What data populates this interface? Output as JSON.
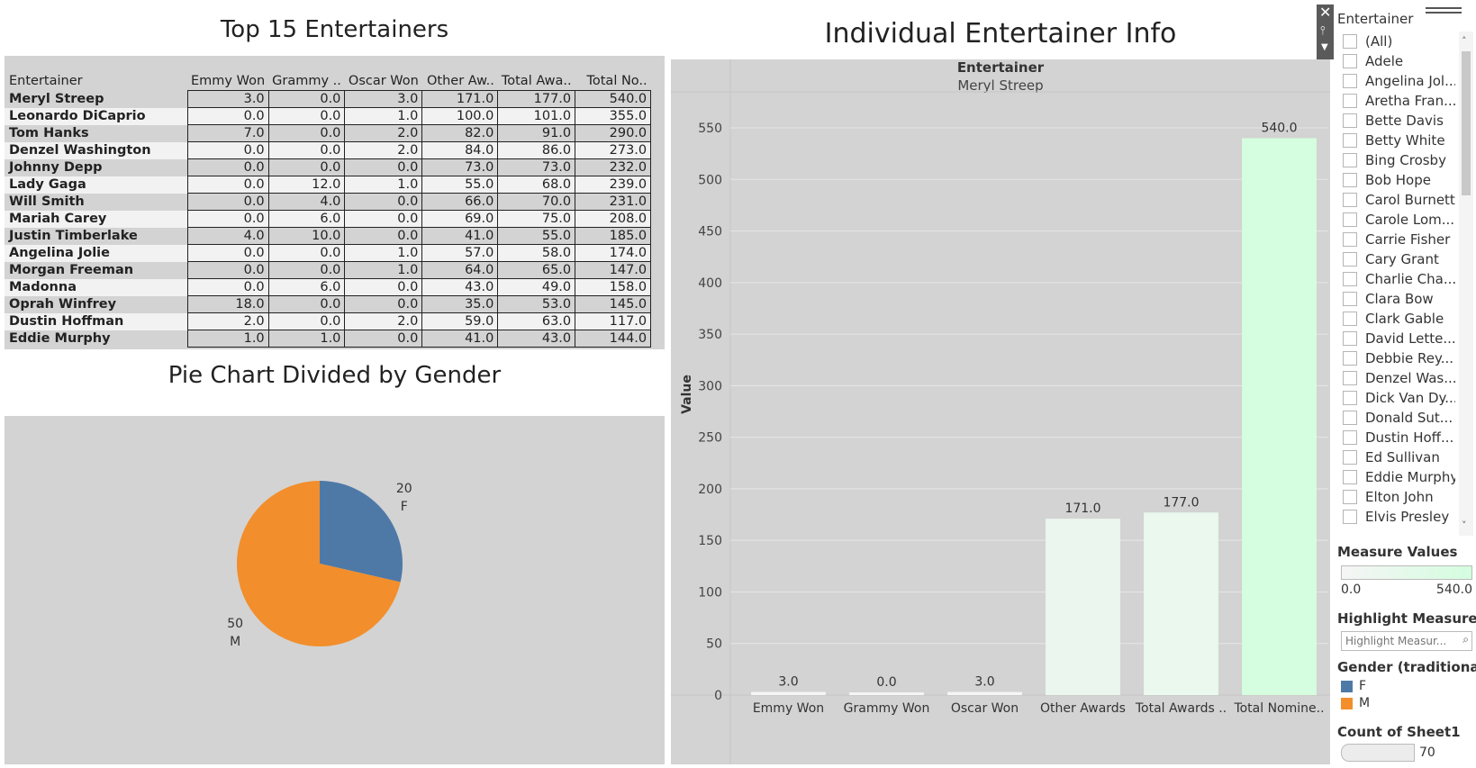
{
  "titles": {
    "table": "Top 15 Entertainers",
    "pie": "Pie Chart Divided by Gender",
    "bar": "Individual Entertainer Info"
  },
  "table": {
    "headers": [
      "Entertainer",
      "Emmy Won",
      "Grammy ..",
      "Oscar Won",
      "Other Aw..",
      "Total Awa..",
      "Total No.."
    ],
    "rows": [
      [
        "Meryl Streep",
        "3.0",
        "0.0",
        "3.0",
        "171.0",
        "177.0",
        "540.0"
      ],
      [
        "Leonardo DiCaprio",
        "0.0",
        "0.0",
        "1.0",
        "100.0",
        "101.0",
        "355.0"
      ],
      [
        "Tom Hanks",
        "7.0",
        "0.0",
        "2.0",
        "82.0",
        "91.0",
        "290.0"
      ],
      [
        "Denzel Washington",
        "0.0",
        "0.0",
        "2.0",
        "84.0",
        "86.0",
        "273.0"
      ],
      [
        "Johnny Depp",
        "0.0",
        "0.0",
        "0.0",
        "73.0",
        "73.0",
        "232.0"
      ],
      [
        "Lady Gaga",
        "0.0",
        "12.0",
        "1.0",
        "55.0",
        "68.0",
        "239.0"
      ],
      [
        "Will Smith",
        "0.0",
        "4.0",
        "0.0",
        "66.0",
        "70.0",
        "231.0"
      ],
      [
        "Mariah Carey",
        "0.0",
        "6.0",
        "0.0",
        "69.0",
        "75.0",
        "208.0"
      ],
      [
        "Justin Timberlake",
        "4.0",
        "10.0",
        "0.0",
        "41.0",
        "55.0",
        "185.0"
      ],
      [
        "Angelina Jolie",
        "0.0",
        "0.0",
        "1.0",
        "57.0",
        "58.0",
        "174.0"
      ],
      [
        "Morgan Freeman",
        "0.0",
        "0.0",
        "1.0",
        "64.0",
        "65.0",
        "147.0"
      ],
      [
        "Madonna",
        "0.0",
        "6.0",
        "0.0",
        "43.0",
        "49.0",
        "158.0"
      ],
      [
        "Oprah Winfrey",
        "18.0",
        "0.0",
        "0.0",
        "35.0",
        "53.0",
        "145.0"
      ],
      [
        "Dustin Hoffman",
        "2.0",
        "0.0",
        "2.0",
        "59.0",
        "63.0",
        "117.0"
      ],
      [
        "Eddie Murphy",
        "1.0",
        "1.0",
        "0.0",
        "41.0",
        "43.0",
        "144.0"
      ]
    ]
  },
  "pie": {
    "slices": [
      {
        "label": "F",
        "value": 20,
        "color": "#4e79a7"
      },
      {
        "label": "M",
        "value": 50,
        "color": "#f28e2b"
      }
    ]
  },
  "bar": {
    "header_label": "Entertainer",
    "header_value": "Meryl Streep",
    "ylabel": "Value"
  },
  "chart_data": {
    "type": "bar",
    "categories": [
      "Emmy Won",
      "Grammy Won",
      "Oscar Won",
      "Other Awards",
      "Total Awards ..",
      "Total Nomine.."
    ],
    "values": [
      3.0,
      0.0,
      3.0,
      171.0,
      177.0,
      540.0
    ],
    "value_labels": [
      "3.0",
      "0.0",
      "3.0",
      "171.0",
      "177.0",
      "540.0"
    ],
    "yticks": [
      0,
      50,
      100,
      150,
      200,
      250,
      300,
      350,
      400,
      450,
      500,
      550
    ],
    "ylim": [
      0,
      550
    ],
    "ylabel": "Value",
    "grid": true,
    "color_low": "#f5f5f5",
    "color_high": "#d4fddf"
  },
  "filter": {
    "title": "Entertainer",
    "items": [
      "(All)",
      "Adele",
      "Angelina Jol...",
      "Aretha Fran...",
      "Bette Davis",
      "Betty White",
      "Bing Crosby",
      "Bob Hope",
      "Carol Burnett",
      "Carole Lom...",
      "Carrie Fisher",
      "Cary Grant",
      "Charlie Cha...",
      "Clara Bow",
      "Clark Gable",
      "David Lette...",
      "Debbie Rey...",
      "Denzel Was...",
      "Dick Van Dy...",
      "Donald Sut...",
      "Dustin Hoff...",
      "Ed Sullivan",
      "Eddie Murphy",
      "Elton John"
    ],
    "partial_item": "Elvis Presley"
  },
  "legends": {
    "measure_values": {
      "title": "Measure Values",
      "min": "0.0",
      "max": "540.0"
    },
    "highlight": {
      "title": "Highlight Measure ..",
      "placeholder": "Highlight Measur..."
    },
    "gender": {
      "title": "Gender (traditional)",
      "items": [
        {
          "label": "F",
          "color": "#4e79a7"
        },
        {
          "label": "M",
          "color": "#f28e2b"
        }
      ]
    },
    "count": {
      "title": "Count of Sheet1",
      "value": "70"
    }
  }
}
